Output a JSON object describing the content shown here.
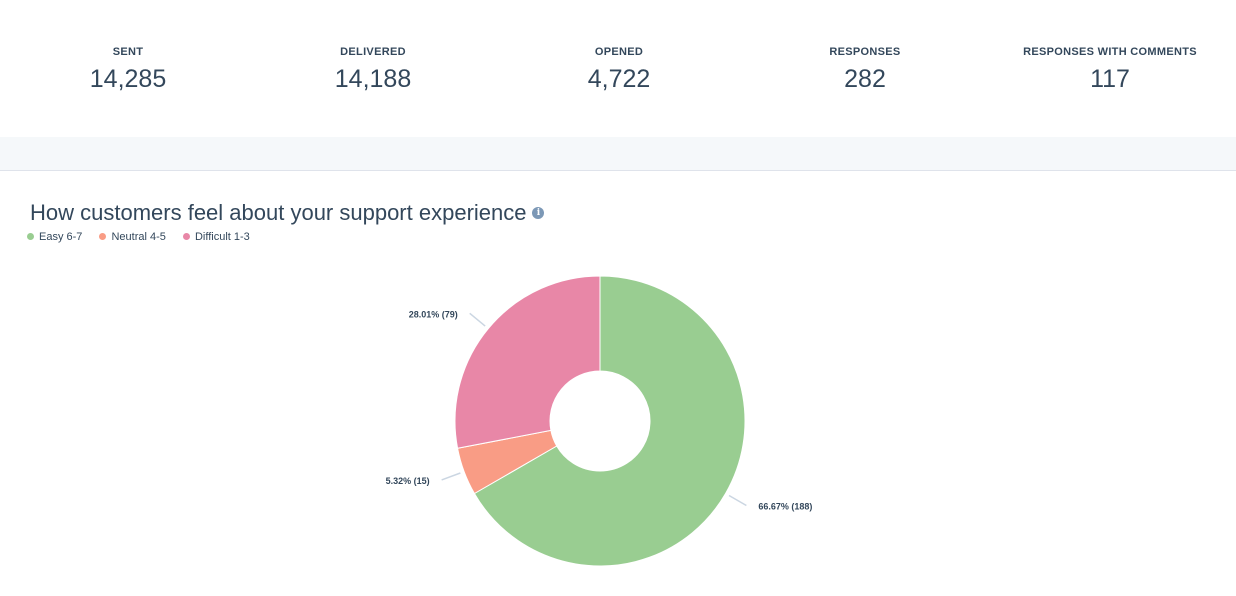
{
  "stats": [
    {
      "label": "SENT",
      "value": "14,285"
    },
    {
      "label": "DELIVERED",
      "value": "14,188"
    },
    {
      "label": "OPENED",
      "value": "4,722"
    },
    {
      "label": "RESPONSES",
      "value": "282"
    },
    {
      "label": "RESPONSES WITH COMMENTS",
      "value": "117"
    }
  ],
  "report": {
    "title": "How customers feel about your support experience",
    "info_icon": "info-icon"
  },
  "chart_data": {
    "type": "pie",
    "donut": true,
    "legend_placement": "top-left",
    "series": [
      {
        "name": "Easy 6-7",
        "value": 188,
        "percent": 66.67,
        "label": "66.67% (188)",
        "color": "#99cd91"
      },
      {
        "name": "Neutral 4-5",
        "value": 15,
        "percent": 5.32,
        "label": "5.32% (15)",
        "color": "#f99c85"
      },
      {
        "name": "Difficult 1-3",
        "value": 79,
        "percent": 28.01,
        "label": "28.01% (79)",
        "color": "#e887a7"
      }
    ]
  }
}
